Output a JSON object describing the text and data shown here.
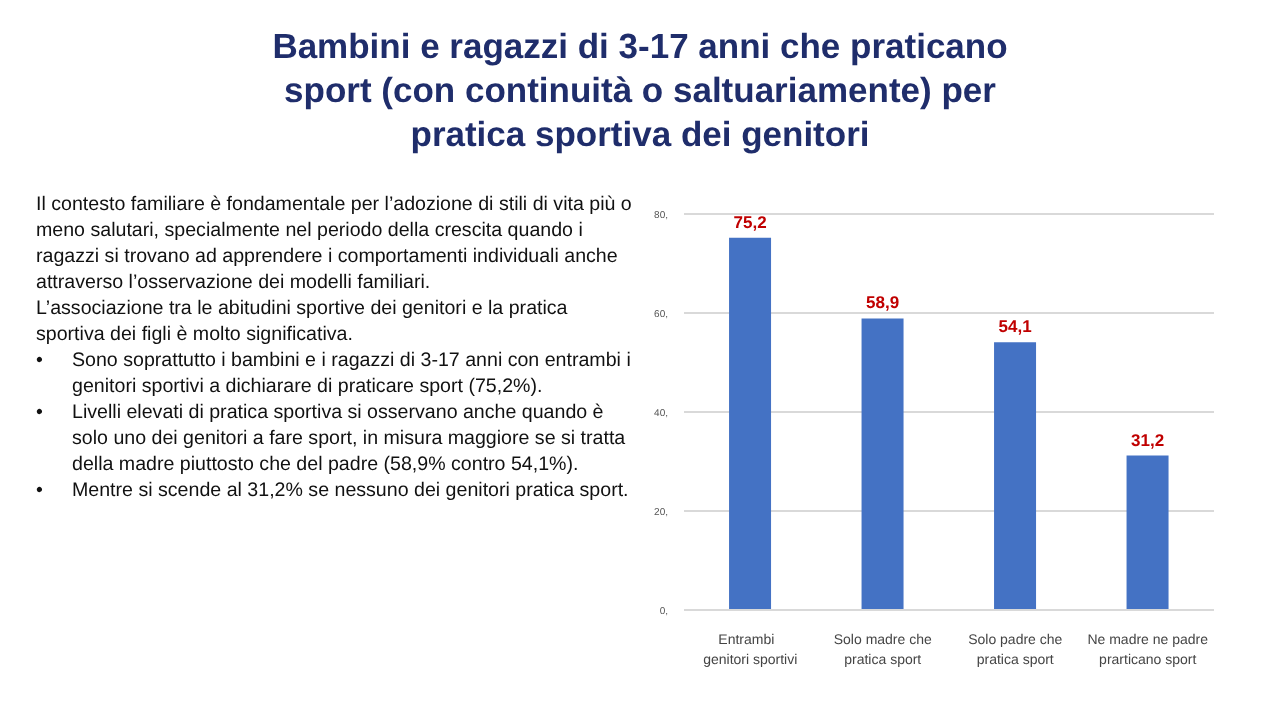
{
  "chart_data": {
    "type": "bar",
    "title": "Bambini e ragazzi di 3-17 anni che praticano sport (con continuità o saltuariamente) per pratica sportiva dei genitori",
    "annotations": [
      "Il contesto familiare è fondamentale per l’adozione di stili di vita più o meno salutari, specialmente nel periodo della crescita quando i ragazzi si trovano ad apprendere i comportamenti individuali anche attraverso l’osservazione dei modelli familiari.",
      "L’associazione tra le abitudini sportive dei genitori e la pratica sportiva dei figli è molto significativa.",
      "•\tSono soprattutto i bambini e i ragazzi di 3-17 anni con entrambi i genitori sportivi a dichiarare di praticare sport (75,2%).",
      "•\tLivelli elevati di pratica sportiva si osservano anche quando è solo uno dei genitori a fare sport, in misura maggiore se si tratta della madre piuttosto che del padre (58,9% contro 54,1%).",
      "•\tMentre si scende al 31,2% se nessuno dei genitori pratica sport."
    ],
    "categories": [
      "Entrambi   genitori sportivi",
      "Solo madre che pratica sport",
      "Solo padre che pratica sport",
      "Ne madre ne padre prarticano sport"
    ],
    "values": [
      75.2,
      58.9,
      54.1,
      31.2
    ],
    "value_labels": [
      "75,2",
      "58,9",
      "54,1",
      "31,2"
    ],
    "color": "#4472c4",
    "ylim": [
      0,
      80
    ],
    "yticks": [
      {
        "value": 0,
        "label": "0,"
      },
      {
        "value": 20,
        "label": "20,"
      },
      {
        "value": 40,
        "label": "40,"
      },
      {
        "value": 60,
        "label": "60,"
      },
      {
        "value": 80,
        "label": "80,"
      }
    ],
    "grid": "y"
  }
}
